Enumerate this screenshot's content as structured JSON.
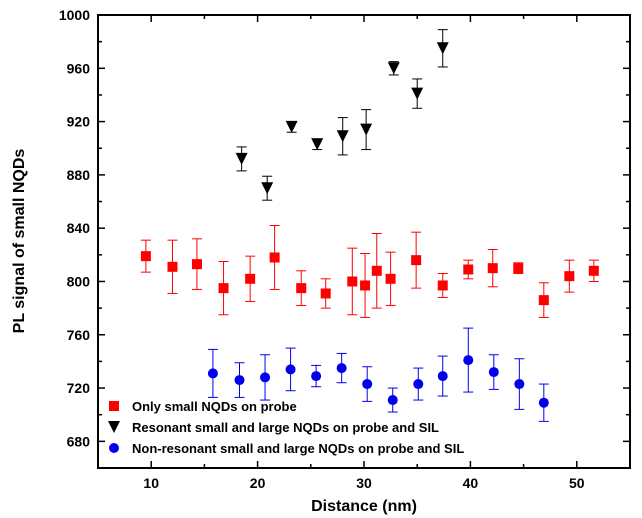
{
  "chart_data": {
    "type": "scatter",
    "title": "",
    "xlabel": "Distance (nm)",
    "ylabel": "PL signal of small NQDs",
    "xlim": [
      5,
      55
    ],
    "ylim": [
      660,
      1000
    ],
    "xticks": [
      10,
      20,
      30,
      40,
      50
    ],
    "yticks": [
      680,
      720,
      760,
      800,
      840,
      880,
      920,
      960,
      1000
    ],
    "grid": false,
    "legend_position": "bottom-left",
    "series": [
      {
        "name": "Only small NQDs on probe",
        "marker": "square",
        "color": "#ff0000",
        "points": [
          {
            "x": 9.5,
            "y": 819,
            "err": 12
          },
          {
            "x": 12.0,
            "y": 811,
            "err": 20
          },
          {
            "x": 14.3,
            "y": 813,
            "err": 19
          },
          {
            "x": 16.8,
            "y": 795,
            "err": 20
          },
          {
            "x": 19.3,
            "y": 802,
            "err": 17
          },
          {
            "x": 21.6,
            "y": 818,
            "err": 24
          },
          {
            "x": 24.1,
            "y": 795,
            "err": 13
          },
          {
            "x": 26.4,
            "y": 791,
            "err": 11
          },
          {
            "x": 28.9,
            "y": 800,
            "err": 25
          },
          {
            "x": 30.1,
            "y": 797,
            "err": 24
          },
          {
            "x": 31.2,
            "y": 808,
            "err": 28
          },
          {
            "x": 32.5,
            "y": 802,
            "err": 20
          },
          {
            "x": 34.9,
            "y": 816,
            "err": 21
          },
          {
            "x": 37.4,
            "y": 797,
            "err": 9
          },
          {
            "x": 39.8,
            "y": 809,
            "err": 7
          },
          {
            "x": 42.1,
            "y": 810,
            "err": 14
          },
          {
            "x": 44.5,
            "y": 810,
            "err": 4
          },
          {
            "x": 46.9,
            "y": 786,
            "err": 13
          },
          {
            "x": 49.3,
            "y": 804,
            "err": 12
          },
          {
            "x": 51.6,
            "y": 808,
            "err": 8
          }
        ]
      },
      {
        "name": "Resonant small and large NQDs on probe and SIL",
        "marker": "triangle-down",
        "color": "#000000",
        "points": [
          {
            "x": 18.5,
            "y": 892,
            "err": 9
          },
          {
            "x": 20.9,
            "y": 870,
            "err": 9
          },
          {
            "x": 23.2,
            "y": 916,
            "err": 4
          },
          {
            "x": 25.6,
            "y": 903,
            "err": 4
          },
          {
            "x": 28.0,
            "y": 909,
            "err": 14
          },
          {
            "x": 30.2,
            "y": 914,
            "err": 15
          },
          {
            "x": 32.8,
            "y": 960,
            "err": 5
          },
          {
            "x": 35.0,
            "y": 941,
            "err": 11
          },
          {
            "x": 37.4,
            "y": 975,
            "err": 14
          }
        ]
      },
      {
        "name": "Non-resonant small and large NQDs on probe and SIL",
        "marker": "circle",
        "color": "#0000ee",
        "points": [
          {
            "x": 15.8,
            "y": 731,
            "err": 18
          },
          {
            "x": 18.3,
            "y": 726,
            "err": 13
          },
          {
            "x": 20.7,
            "y": 728,
            "err": 17
          },
          {
            "x": 23.1,
            "y": 734,
            "err": 16
          },
          {
            "x": 25.5,
            "y": 729,
            "err": 8
          },
          {
            "x": 27.9,
            "y": 735,
            "err": 11
          },
          {
            "x": 30.3,
            "y": 723,
            "err": 13
          },
          {
            "x": 32.7,
            "y": 711,
            "err": 9
          },
          {
            "x": 35.1,
            "y": 723,
            "err": 12
          },
          {
            "x": 37.4,
            "y": 729,
            "err": 15
          },
          {
            "x": 39.8,
            "y": 741,
            "err": 24
          },
          {
            "x": 42.2,
            "y": 732,
            "err": 13
          },
          {
            "x": 44.6,
            "y": 723,
            "err": 19
          },
          {
            "x": 46.9,
            "y": 709,
            "err": 14
          }
        ]
      }
    ]
  }
}
